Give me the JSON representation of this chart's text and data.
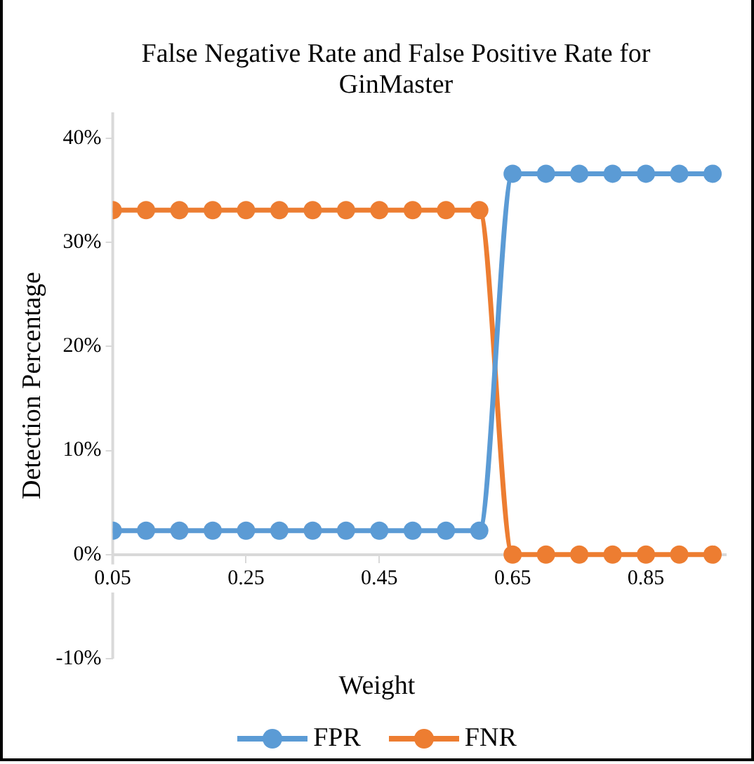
{
  "chart_data": {
    "type": "line",
    "title": "False Negative Rate and False Positive Rate for GinMaster",
    "xlabel": "Weight",
    "ylabel": "Detection Percentage",
    "x": [
      0.05,
      0.1,
      0.15,
      0.2,
      0.25,
      0.3,
      0.35,
      0.4,
      0.45,
      0.5,
      0.55,
      0.6,
      0.65,
      0.7,
      0.75,
      0.8,
      0.85,
      0.9,
      0.95
    ],
    "series": [
      {
        "name": "FPR",
        "color": "#5b9bd5",
        "values": [
          2.3,
          2.3,
          2.3,
          2.3,
          2.3,
          2.3,
          2.3,
          2.3,
          2.3,
          2.3,
          2.3,
          2.3,
          36.6,
          36.6,
          36.6,
          36.6,
          36.6,
          36.6,
          36.6
        ]
      },
      {
        "name": "FNR",
        "color": "#ed7d31",
        "values": [
          33.1,
          33.1,
          33.1,
          33.1,
          33.1,
          33.1,
          33.1,
          33.1,
          33.1,
          33.1,
          33.1,
          33.1,
          0,
          0,
          0,
          0,
          0,
          0,
          0
        ]
      }
    ],
    "xlim": [
      0.05,
      0.97
    ],
    "xticks": [
      0.05,
      0.25,
      0.45,
      0.65,
      0.85
    ],
    "ylim": [
      -10,
      42.5
    ],
    "yticks": [
      {
        "value": -10,
        "label": "-10%"
      },
      {
        "value": 0,
        "label": "0%"
      },
      {
        "value": 10,
        "label": "10%"
      },
      {
        "value": 20,
        "label": "20%"
      },
      {
        "value": 30,
        "label": "30%"
      },
      {
        "value": 40,
        "label": "40%"
      }
    ],
    "grid": false,
    "legend": "bottom",
    "marker": "circle",
    "line_style": "solid"
  }
}
